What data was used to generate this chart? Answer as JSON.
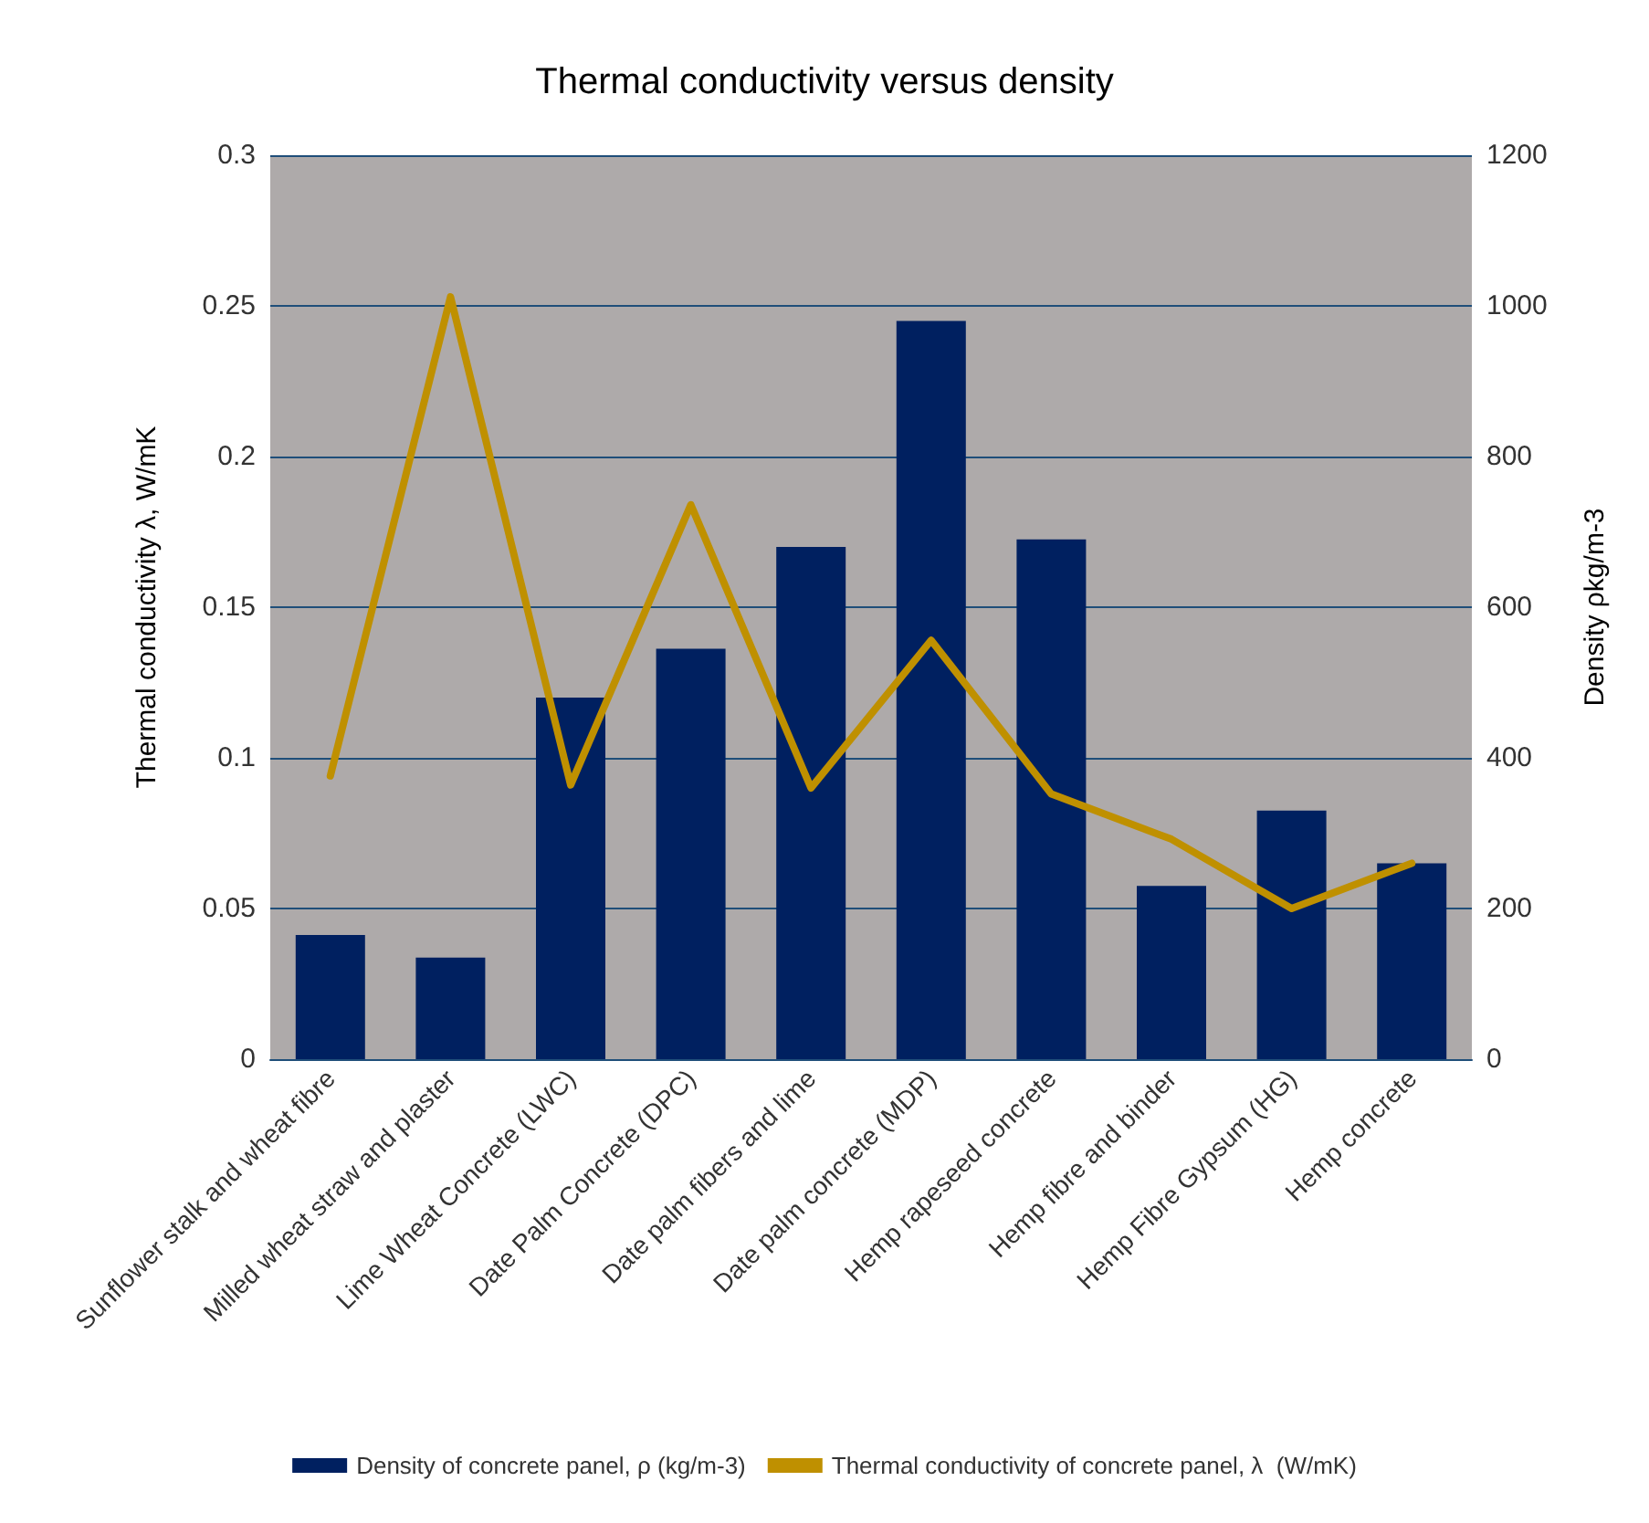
{
  "chart_data": {
    "type": "bar",
    "title": "Thermal conductivity versus density",
    "ylabel": "Thermal conductivity λ, W/mK",
    "y2label": "Density ρkg/m-3",
    "categories": [
      "Sunflower stalk and wheat fibre",
      "Milled wheat straw and plaster",
      "Lime Wheat Concrete (LWC)",
      "Date Palm Concrete (DPC)",
      "Date palm fibers and lime",
      "Date palm concrete (MDP)",
      "Hemp rapeseed concrete",
      "Hemp fibre and binder",
      "Hemp Fibre Gypsum (HG)",
      "Hemp concrete"
    ],
    "series": [
      {
        "name": "Density of concrete panel, ρ (kg/m-3)",
        "axis": "y2",
        "color": "#002060",
        "values": [
          165,
          135,
          480,
          545,
          680,
          980,
          690,
          230,
          330,
          260
        ]
      },
      {
        "name": "Thermal conductivity of concrete panel, λ  (W/mK)",
        "type": "line",
        "color": "#bf9000",
        "values": [
          0.094,
          0.253,
          0.091,
          0.184,
          0.09,
          0.139,
          0.088,
          0.073,
          0.05,
          0.065
        ]
      }
    ],
    "ylim": [
      0,
      0.3
    ],
    "yticks": [
      0,
      0.05,
      0.1,
      0.15,
      0.2,
      0.25,
      0.3
    ],
    "y2lim": [
      0,
      1200
    ],
    "y2ticks": [
      0,
      200,
      400,
      600,
      800,
      1000,
      1200
    ],
    "grid": true,
    "legend": "bottom",
    "marker": "none"
  }
}
